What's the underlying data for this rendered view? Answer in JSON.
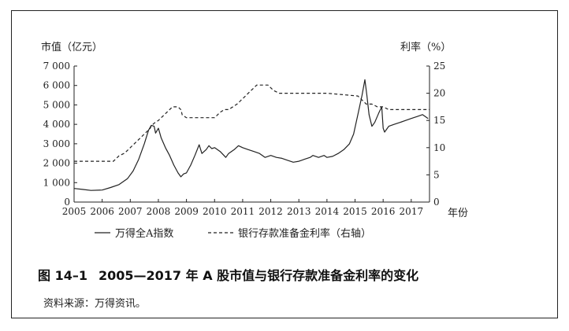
{
  "caption": {
    "figure_no": "图 14–1",
    "title": "2005—2017 年 A 股市值与银行存款准备金利率的变化"
  },
  "source_note": "资料来源：万得资讯。",
  "chart_data": {
    "type": "line",
    "left_axis_label": "市值（亿元）",
    "right_axis_label": "利率（%）",
    "x_axis_label": "年份",
    "x_ticks": [
      "2005",
      "2006",
      "2007",
      "2008",
      "2009",
      "2010",
      "2011",
      "2012",
      "2013",
      "2014",
      "2015",
      "2016",
      "2017"
    ],
    "y_left_ticks": [
      "0",
      "1 000",
      "2 000",
      "3 000",
      "4 000",
      "5 000",
      "6 000",
      "7 000"
    ],
    "y_right_ticks": [
      "0",
      "5",
      "10",
      "15",
      "20",
      "25"
    ],
    "ylim_left": [
      0,
      7000
    ],
    "ylim_right": [
      0,
      25
    ],
    "xlim": [
      2005.0,
      2017.65
    ],
    "grid": false,
    "series": [
      {
        "name": "万得全A指数",
        "axis": "left",
        "style": "solid",
        "x": [
          2005.0,
          2005.3,
          2005.6,
          2006.0,
          2006.3,
          2006.6,
          2006.9,
          2007.1,
          2007.3,
          2007.5,
          2007.65,
          2007.75,
          2007.85,
          2007.9,
          2008.0,
          2008.1,
          2008.25,
          2008.4,
          2008.55,
          2008.7,
          2008.8,
          2008.9,
          2009.0,
          2009.15,
          2009.3,
          2009.45,
          2009.55,
          2009.7,
          2009.8,
          2009.9,
          2010.0,
          2010.2,
          2010.4,
          2010.5,
          2010.7,
          2010.85,
          2011.0,
          2011.2,
          2011.4,
          2011.6,
          2011.8,
          2012.0,
          2012.2,
          2012.4,
          2012.6,
          2012.8,
          2013.0,
          2013.2,
          2013.4,
          2013.5,
          2013.7,
          2013.9,
          2014.0,
          2014.2,
          2014.4,
          2014.6,
          2014.8,
          2014.95,
          2015.1,
          2015.25,
          2015.35,
          2015.42,
          2015.5,
          2015.6,
          2015.7,
          2015.85,
          2015.95,
          2016.0,
          2016.05,
          2016.2,
          2016.4,
          2016.6,
          2016.8,
          2017.0,
          2017.2,
          2017.4,
          2017.6
        ],
        "values": [
          700,
          650,
          600,
          620,
          750,
          900,
          1200,
          1600,
          2200,
          3000,
          3700,
          3950,
          3900,
          3550,
          3800,
          3300,
          2800,
          2400,
          1900,
          1500,
          1300,
          1450,
          1500,
          1900,
          2400,
          2950,
          2500,
          2700,
          2900,
          2750,
          2800,
          2600,
          2300,
          2500,
          2700,
          2900,
          2800,
          2700,
          2600,
          2500,
          2300,
          2400,
          2300,
          2250,
          2150,
          2050,
          2100,
          2200,
          2300,
          2400,
          2300,
          2400,
          2300,
          2350,
          2500,
          2700,
          3000,
          3500,
          4500,
          5500,
          6300,
          5500,
          4500,
          3900,
          4100,
          4600,
          4900,
          3800,
          3600,
          3900,
          4000,
          4100,
          4200,
          4300,
          4400,
          4500,
          4300
        ]
      },
      {
        "name": "银行存款准备金利率（右轴）",
        "axis": "right",
        "style": "dashed",
        "x": [
          2005.0,
          2006.4,
          2006.5,
          2006.6,
          2006.8,
          2006.9,
          2007.0,
          2007.1,
          2007.2,
          2007.3,
          2007.4,
          2007.5,
          2007.6,
          2007.7,
          2007.75,
          2007.85,
          2008.0,
          2008.1,
          2008.2,
          2008.3,
          2008.4,
          2008.5,
          2008.7,
          2008.8,
          2008.85,
          2009.0,
          2009.5,
          2010.0,
          2010.1,
          2010.2,
          2010.35,
          2010.5,
          2010.8,
          2010.9,
          2011.0,
          2011.1,
          2011.2,
          2011.3,
          2011.4,
          2011.5,
          2011.7,
          2011.9,
          2012.0,
          2012.1,
          2012.3,
          2012.45,
          2012.7,
          2013.0,
          2014.0,
          2015.1,
          2015.2,
          2015.3,
          2015.4,
          2015.6,
          2015.8,
          2016.0,
          2016.2,
          2016.4,
          2016.5,
          2017.65
        ],
        "values": [
          7.5,
          7.5,
          8.0,
          8.5,
          9.0,
          9.5,
          10.0,
          10.5,
          11.0,
          11.5,
          12.0,
          12.5,
          13.0,
          13.5,
          14.0,
          14.5,
          15.0,
          15.5,
          16.0,
          16.5,
          17.0,
          17.5,
          17.5,
          17.0,
          16.0,
          15.5,
          15.5,
          15.5,
          16.0,
          16.5,
          17.0,
          17.0,
          18.0,
          18.5,
          19.0,
          19.5,
          20.0,
          20.5,
          21.0,
          21.5,
          21.5,
          21.5,
          21.0,
          20.5,
          20.0,
          20.0,
          20.0,
          20.0,
          20.0,
          19.5,
          19.0,
          18.5,
          18.0,
          18.0,
          17.5,
          17.5,
          17.0,
          17.0,
          17.0,
          17.0
        ]
      }
    ]
  }
}
